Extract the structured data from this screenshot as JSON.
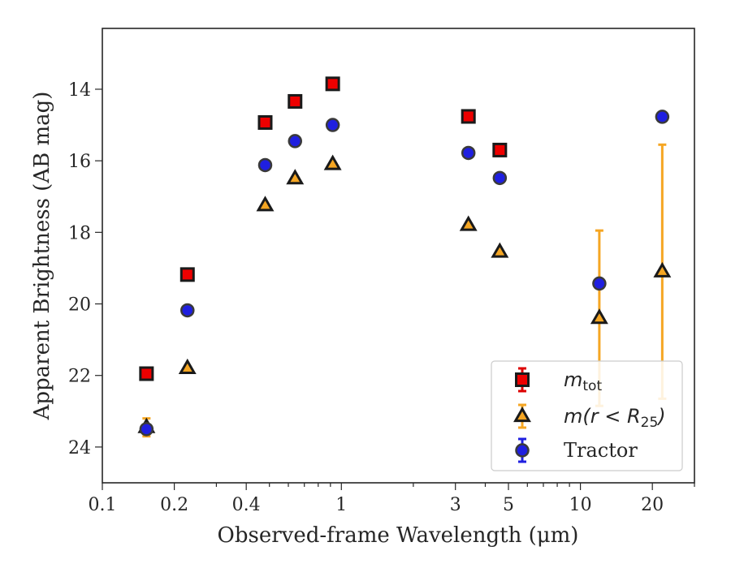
{
  "chart_data": {
    "type": "scatter",
    "title": "",
    "xlabel": "Observed-frame Wavelength (μm)",
    "ylabel": "Apparent Brightness (AB mag)",
    "xscale": "log",
    "xlim": [
      0.1,
      30
    ],
    "ylim": [
      25,
      12.3
    ],
    "y_inverted": true,
    "grid": false,
    "legend_position": "lower-right",
    "x_ticks": [
      {
        "value": 0.1,
        "label": "0.1"
      },
      {
        "value": 0.2,
        "label": "0.2"
      },
      {
        "value": 0.4,
        "label": "0.4"
      },
      {
        "value": 1,
        "label": "1"
      },
      {
        "value": 3,
        "label": "3"
      },
      {
        "value": 5,
        "label": "5"
      },
      {
        "value": 10,
        "label": "10"
      },
      {
        "value": 20,
        "label": "20"
      }
    ],
    "y_ticks": [
      {
        "value": 14,
        "label": "14"
      },
      {
        "value": 16,
        "label": "16"
      },
      {
        "value": 18,
        "label": "18"
      },
      {
        "value": 20,
        "label": "20"
      },
      {
        "value": 22,
        "label": "22"
      },
      {
        "value": 24,
        "label": "24"
      }
    ],
    "series": [
      {
        "name": "m_tot",
        "legend_main": "m",
        "legend_sub": "tot",
        "marker": "square",
        "fill": "#ee0000",
        "error_color": "#dd0000",
        "points": [
          {
            "x": 0.153,
            "y": 21.95
          },
          {
            "x": 0.227,
            "y": 19.18
          },
          {
            "x": 0.48,
            "y": 14.93
          },
          {
            "x": 0.64,
            "y": 14.34
          },
          {
            "x": 0.92,
            "y": 13.85
          },
          {
            "x": 3.4,
            "y": 14.76
          },
          {
            "x": 4.6,
            "y": 15.7
          }
        ]
      },
      {
        "name": "m(r<R25)",
        "legend_main": "m(r < R",
        "legend_sub": "25",
        "legend_tail": ")",
        "marker": "triangle",
        "fill": "#f5a623",
        "error_color": "#f5a623",
        "points": [
          {
            "x": 0.153,
            "y": 23.45,
            "yerr": 0.25
          },
          {
            "x": 0.227,
            "y": 21.8
          },
          {
            "x": 0.48,
            "y": 17.25
          },
          {
            "x": 0.64,
            "y": 16.5
          },
          {
            "x": 0.92,
            "y": 16.1
          },
          {
            "x": 3.4,
            "y": 17.8
          },
          {
            "x": 4.6,
            "y": 18.55
          },
          {
            "x": 12.0,
            "y": 20.4,
            "yerr": 2.45
          },
          {
            "x": 22.0,
            "y": 19.1,
            "yerr": 3.55
          }
        ]
      },
      {
        "name": "Tractor",
        "legend_main": "Tractor",
        "marker": "circle",
        "fill": "#1f1fe0",
        "error_color": "#1f1fe0",
        "points": [
          {
            "x": 0.153,
            "y": 23.5
          },
          {
            "x": 0.227,
            "y": 20.18
          },
          {
            "x": 0.48,
            "y": 16.12
          },
          {
            "x": 0.64,
            "y": 15.45
          },
          {
            "x": 0.92,
            "y": 15.0
          },
          {
            "x": 3.4,
            "y": 15.78
          },
          {
            "x": 4.6,
            "y": 16.48
          },
          {
            "x": 12.0,
            "y": 19.43
          },
          {
            "x": 22.0,
            "y": 14.77
          }
        ]
      }
    ]
  }
}
